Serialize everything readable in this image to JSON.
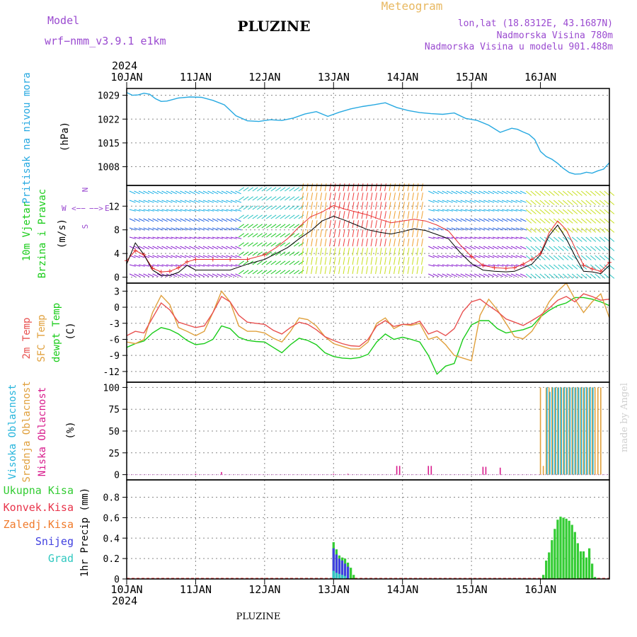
{
  "header": {
    "model_label": "Model",
    "model_name": "wrf−nmm_v3.9.1 e1km",
    "station": "PLUZINE",
    "meteogram": "Meteogram",
    "lonlat": "lon,lat (18.8312E, 43.1687N)",
    "elev": "Nadmorska Visina 780m",
    "elev_model": "Nadmorska Visina u modelu 901.488m",
    "year_top": "2024",
    "year_bottom": "2024",
    "footer_station": "PLUZINE",
    "credit": "made by Angel"
  },
  "colors": {
    "pressure": "#27a9e1",
    "temp2m": "#e8504f",
    "sfc": "#e0a03c",
    "dew": "#19cc19",
    "high": "#27b5dc",
    "mid": "#e0a03c",
    "low": "#d81b8c",
    "total": "#33cc33",
    "conv": "#e8334a",
    "frz": "#f07a2a",
    "snow": "#4040e0",
    "grad": "#30c8c0",
    "purple": "#9a4ad0",
    "orange": "#e8b860"
  },
  "chart_data": [
    {
      "id": "pressure",
      "type": "line",
      "title": "",
      "ylabel_lines": [
        "Pritisak na nivou mora",
        "(hPa)"
      ],
      "x_ticks": [
        "10JAN",
        "11JAN",
        "12JAN",
        "13JAN",
        "14JAN",
        "15JAN",
        "16JAN"
      ],
      "yticks": [
        1008,
        1015,
        1022,
        1029
      ],
      "ylim": [
        1002.5,
        1031
      ],
      "grid": true,
      "x_units": "hours since 10JAN 00",
      "x": [
        0,
        2,
        4,
        6,
        8,
        10,
        12,
        14,
        18,
        22,
        26,
        30,
        34,
        38,
        42,
        46,
        50,
        54,
        58,
        62,
        66,
        70,
        74,
        78,
        82,
        86,
        90,
        94,
        98,
        102,
        106,
        110,
        114,
        118,
        122,
        126,
        130,
        134,
        136,
        138,
        140,
        142,
        144,
        146,
        148,
        150,
        152,
        154,
        156,
        158,
        160,
        162,
        164,
        166,
        168
      ],
      "series": [
        {
          "key": "pressure",
          "values": [
            1029.8,
            1029.0,
            1029.1,
            1029.6,
            1029.3,
            1028.0,
            1027.2,
            1027.3,
            1028.2,
            1028.5,
            1028.4,
            1027.5,
            1026.2,
            1023.0,
            1021.5,
            1021.3,
            1021.8,
            1021.6,
            1022.3,
            1023.5,
            1024.2,
            1022.8,
            1024.0,
            1025.0,
            1025.7,
            1026.2,
            1026.8,
            1025.4,
            1024.5,
            1023.9,
            1023.6,
            1023.4,
            1023.8,
            1022.2,
            1021.6,
            1020.2,
            1018.1,
            1019.3,
            1019.0,
            1018.2,
            1017.5,
            1016.0,
            1012.5,
            1011.0,
            1010.2,
            1009.0,
            1007.5,
            1006.3,
            1005.8,
            1005.9,
            1006.4,
            1006.1,
            1006.8,
            1007.3,
            1009.2
          ]
        }
      ]
    },
    {
      "id": "wind",
      "type": "line",
      "title": "",
      "ylabel_lines": [
        "10m Vjetar",
        "Brzina i Pravac",
        "(m/s)"
      ],
      "compass": [
        "N",
        "W",
        "E",
        "S"
      ],
      "compass_arrows": [
        "<−−",
        "−−>"
      ],
      "yticks": [
        0,
        4,
        8,
        12
      ],
      "ylim": [
        -1,
        15.5
      ],
      "grid": true,
      "x_units": "hours since 10JAN 00",
      "x": [
        0,
        3,
        6,
        9,
        12,
        15,
        18,
        21,
        24,
        30,
        36,
        42,
        48,
        52,
        56,
        60,
        64,
        68,
        72,
        76,
        80,
        84,
        88,
        92,
        96,
        100,
        104,
        108,
        112,
        116,
        120,
        124,
        128,
        132,
        135,
        138,
        141,
        144,
        147,
        150,
        153,
        156,
        159,
        162,
        165,
        168
      ],
      "series": [
        {
          "key": "speed",
          "name": "",
          "values": [
            2.2,
            5.8,
            3.8,
            1.2,
            0.3,
            0.3,
            0.8,
            2.0,
            1.2,
            1.2,
            1.2,
            2.2,
            3.0,
            4.0,
            5.0,
            6.5,
            7.8,
            9.5,
            10.3,
            9.6,
            8.8,
            8.0,
            7.6,
            7.3,
            7.7,
            8.2,
            7.9,
            7.2,
            6.5,
            4.2,
            2.3,
            1.2,
            1.0,
            0.9,
            1.0,
            1.6,
            2.2,
            3.8,
            7.0,
            8.8,
            6.5,
            3.6,
            1.0,
            0.9,
            0.6,
            2.0
          ]
        },
        {
          "key": "gust",
          "name": "",
          "values": [
            2.8,
            4.5,
            3.8,
            1.5,
            0.9,
            1.0,
            1.6,
            2.6,
            3.0,
            3.0,
            3.0,
            3.0,
            3.8,
            5.0,
            6.5,
            8.5,
            10.2,
            11.0,
            12.1,
            11.5,
            11.0,
            10.5,
            9.8,
            9.2,
            9.5,
            9.8,
            9.5,
            8.8,
            7.8,
            5.5,
            3.5,
            2.0,
            1.6,
            1.5,
            1.6,
            2.2,
            3.0,
            4.0,
            7.5,
            9.5,
            8.0,
            5.0,
            2.0,
            1.4,
            1.0,
            2.5
          ]
        }
      ],
      "vector_segments_hours": [
        [
          0,
          38
        ],
        [
          38,
          60
        ],
        [
          60,
          104
        ],
        [
          104,
          138
        ],
        [
          138,
          168
        ]
      ]
    },
    {
      "id": "temperature",
      "type": "line",
      "title": "",
      "ylabel_lines": [
        "2m Temp",
        "SFC Temp",
        "dewpt Temp",
        "(C)"
      ],
      "yticks": [
        -12,
        -9,
        -6,
        -3,
        0,
        3
      ],
      "ylim": [
        -14,
        4.5
      ],
      "grid": true,
      "x_units": "hours since 10JAN 00",
      "x": [
        0,
        3,
        6,
        9,
        12,
        15,
        18,
        21,
        24,
        27,
        30,
        33,
        36,
        39,
        42,
        45,
        48,
        51,
        54,
        57,
        60,
        63,
        66,
        69,
        72,
        75,
        78,
        81,
        84,
        87,
        90,
        93,
        96,
        99,
        102,
        105,
        108,
        111,
        114,
        117,
        120,
        123,
        126,
        129,
        132,
        135,
        138,
        141,
        144,
        147,
        150,
        153,
        156,
        159,
        162,
        165,
        168
      ],
      "series": [
        {
          "key": "temp2m",
          "name": "2m Temp",
          "values": [
            -5.3,
            -4.5,
            -4.8,
            -2.0,
            0.8,
            -0.5,
            -2.8,
            -3.3,
            -3.8,
            -3.5,
            -1.0,
            2.0,
            1.0,
            -1.5,
            -2.8,
            -3.0,
            -3.2,
            -4.3,
            -5.0,
            -3.8,
            -2.8,
            -3.2,
            -4.2,
            -5.5,
            -6.2,
            -6.8,
            -7.2,
            -7.3,
            -6.0,
            -3.5,
            -2.5,
            -3.6,
            -3.2,
            -3.2,
            -2.6,
            -5.0,
            -4.4,
            -5.3,
            -4.0,
            -0.8,
            1.0,
            1.5,
            0.3,
            -0.8,
            -2.2,
            -2.8,
            -3.4,
            -2.5,
            -1.5,
            -0.2,
            1.3,
            2.0,
            1.0,
            2.5,
            2.0,
            1.3,
            1.5
          ]
        },
        {
          "key": "sfc",
          "name": "SFC Temp",
          "values": [
            -6.5,
            -6.8,
            -6.0,
            -1.0,
            2.2,
            0.5,
            -3.8,
            -4.5,
            -5.3,
            -4.5,
            -1.0,
            3.0,
            1.0,
            -3.5,
            -4.5,
            -4.5,
            -4.8,
            -5.8,
            -6.5,
            -4.5,
            -2.0,
            -2.3,
            -3.5,
            -5.5,
            -6.8,
            -7.3,
            -7.8,
            -7.8,
            -6.5,
            -3.0,
            -2.0,
            -4.0,
            -3.2,
            -3.4,
            -3.0,
            -6.0,
            -5.5,
            -7.0,
            -9.0,
            -9.5,
            -10.0,
            -1.5,
            1.5,
            -0.5,
            -3.0,
            -5.5,
            -5.9,
            -4.5,
            -2.0,
            1.0,
            3.0,
            4.5,
            1.5,
            -1.0,
            1.0,
            2.5,
            -2.0
          ]
        },
        {
          "key": "dew",
          "name": "dewpt Temp",
          "values": [
            -7.5,
            -6.8,
            -6.3,
            -4.8,
            -3.8,
            -4.2,
            -5.0,
            -6.2,
            -7.0,
            -6.8,
            -6.0,
            -3.5,
            -4.0,
            -5.6,
            -6.2,
            -6.4,
            -6.5,
            -7.5,
            -8.5,
            -7.0,
            -5.8,
            -6.2,
            -7.0,
            -8.5,
            -9.2,
            -9.5,
            -9.6,
            -9.4,
            -8.8,
            -6.5,
            -5.0,
            -6.0,
            -5.6,
            -6.0,
            -6.5,
            -9.0,
            -12.5,
            -11.0,
            -10.5,
            -6.0,
            -3.3,
            -2.5,
            -2.5,
            -4.0,
            -4.8,
            -4.5,
            -4.2,
            -3.6,
            -1.8,
            -0.6,
            0.3,
            0.8,
            1.8,
            1.8,
            1.5,
            1.0,
            0.3
          ]
        }
      ]
    },
    {
      "id": "clouds",
      "type": "bar",
      "title": "",
      "ylabel_lines": [
        "Visoka Oblacnost",
        "Srednja Oblacnost",
        "Niska Oblacnost",
        "(%)"
      ],
      "yticks": [
        0,
        25,
        50,
        75,
        100
      ],
      "ylim": [
        -6,
        106
      ],
      "grid": true,
      "x_units": "hours since 10JAN 00",
      "series": [
        {
          "key": "low",
          "name": "Niska Oblacnost",
          "x": [
            24,
            33,
            72,
            77,
            94,
            95,
            105,
            106,
            124,
            125,
            130
          ],
          "values": [
            1,
            3,
            1,
            1,
            10,
            10,
            10,
            10,
            9,
            9,
            8
          ]
        },
        {
          "key": "mid",
          "name": "Srednja Oblacnost",
          "x": [
            144,
            145,
            146,
            147,
            148,
            149,
            150,
            151,
            152,
            153,
            154,
            155,
            156,
            157,
            158,
            159,
            160,
            161,
            162,
            163,
            164,
            165
          ],
          "values": [
            100,
            10,
            100,
            100,
            100,
            100,
            100,
            100,
            100,
            100,
            100,
            100,
            100,
            100,
            100,
            100,
            100,
            100,
            100,
            100,
            100,
            100
          ]
        },
        {
          "key": "high",
          "name": "Visoka Oblacnost",
          "x": [
            146,
            147,
            148,
            149,
            150,
            151,
            152,
            153,
            154,
            155,
            156,
            157,
            158,
            159,
            160,
            161,
            162
          ],
          "values": [
            100,
            95,
            100,
            100,
            100,
            100,
            100,
            100,
            100,
            100,
            100,
            100,
            100,
            100,
            100,
            100,
            100
          ]
        }
      ]
    },
    {
      "id": "precip",
      "type": "bar",
      "title": "",
      "ylabel_lines": [
        "1hr Precip (mm)"
      ],
      "legend": [
        "Ukupna Kisa",
        "Konvek.Kisa",
        "Zaledj.Kisa",
        "Snijeg",
        "Grad"
      ],
      "yticks": [
        0.0,
        0.2,
        0.4,
        0.6,
        0.8
      ],
      "ylim": [
        0,
        0.97
      ],
      "grid": true,
      "x_ticks": [
        "10JAN",
        "11JAN",
        "12JAN",
        "13JAN",
        "14JAN",
        "15JAN",
        "16JAN"
      ],
      "x_units": "hours since 10JAN 00",
      "series": [
        {
          "key": "total",
          "name": "Ukupna Kisa",
          "x": [
            72,
            73,
            74,
            75,
            76,
            77,
            78,
            79,
            145,
            146,
            147,
            148,
            149,
            150,
            151,
            152,
            153,
            154,
            155,
            156,
            157,
            158,
            159,
            160,
            161,
            162,
            163
          ],
          "values": [
            0.36,
            0.29,
            0.23,
            0.21,
            0.2,
            0.16,
            0.11,
            0.04,
            0.04,
            0.18,
            0.26,
            0.38,
            0.49,
            0.58,
            0.61,
            0.6,
            0.59,
            0.57,
            0.53,
            0.46,
            0.35,
            0.27,
            0.27,
            0.21,
            0.3,
            0.15,
            0.02
          ]
        },
        {
          "key": "snow",
          "name": "Snijeg",
          "x": [
            72,
            73,
            74,
            75,
            76,
            77
          ],
          "values": [
            0.3,
            0.24,
            0.2,
            0.18,
            0.15,
            0.12
          ]
        },
        {
          "key": "grad",
          "name": "Grad",
          "x": [
            72,
            73,
            74,
            75,
            76
          ],
          "values": [
            0.08,
            0.06,
            0.05,
            0.04,
            0.03
          ]
        }
      ]
    }
  ]
}
